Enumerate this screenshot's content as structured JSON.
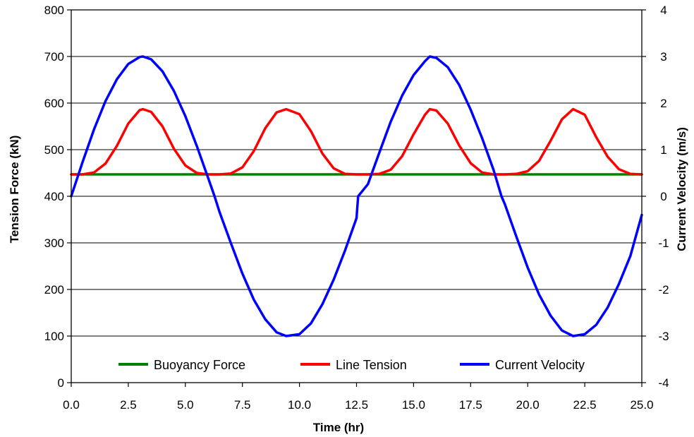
{
  "chart_data": {
    "type": "line",
    "xlabel": "Time (hr)",
    "ylabel": "Tension Force (kN)",
    "y2label": "Current Velocity (m/s)",
    "xlim": [
      0,
      25
    ],
    "ylim": [
      0,
      800
    ],
    "y2lim": [
      -4,
      4
    ],
    "x_ticks": [
      "0.0",
      "2.5",
      "5.0",
      "7.5",
      "10.0",
      "12.5",
      "15.0",
      "17.5",
      "20.0",
      "22.5",
      "25.0"
    ],
    "y_ticks": [
      "0",
      "100",
      "200",
      "300",
      "400",
      "500",
      "600",
      "700",
      "800"
    ],
    "y2_ticks": [
      "-4",
      "-3",
      "-2",
      "-1",
      "0",
      "1",
      "2",
      "3",
      "4"
    ],
    "grid": "horizontal",
    "legend_position": "bottom",
    "series": [
      {
        "name": "Buoyancy Force",
        "axis": "left",
        "color": "#008000",
        "x": [
          0,
          25
        ],
        "y": [
          447,
          447
        ]
      },
      {
        "name": "Line Tension",
        "axis": "left",
        "color": "#ff0000",
        "x": [
          0,
          0.5,
          1.0,
          1.5,
          2.0,
          2.5,
          3.0,
          3.14,
          3.5,
          4.0,
          4.5,
          5.0,
          5.5,
          6.0,
          6.5,
          7.0,
          7.5,
          8.0,
          8.5,
          9.0,
          9.42,
          10.0,
          10.5,
          11.0,
          11.5,
          12.0,
          12.5,
          13.0,
          13.5,
          14.0,
          14.5,
          15.0,
          15.5,
          15.71,
          16.0,
          16.5,
          17.0,
          17.5,
          18.0,
          18.5,
          19.0,
          19.5,
          20.0,
          20.5,
          21.0,
          21.5,
          21.99,
          22.5,
          23.0,
          23.5,
          24.0,
          24.5,
          25.0
        ],
        "y": [
          447,
          447,
          451,
          470,
          508,
          556,
          585,
          587,
          581,
          550,
          502,
          466,
          450,
          447,
          447,
          449,
          462,
          497,
          546,
          580,
          587,
          576,
          540,
          492,
          460,
          448,
          447,
          447,
          448,
          457,
          486,
          533,
          575,
          587,
          584,
          556,
          509,
          471,
          451,
          447,
          447,
          448,
          454,
          476,
          519,
          565,
          587,
          575,
          527,
          485,
          458,
          448,
          447
        ]
      },
      {
        "name": "Current Velocity",
        "axis": "right",
        "color": "#0000ff",
        "x": [
          0,
          0.5,
          1.0,
          1.5,
          2.0,
          2.5,
          3.0,
          3.14,
          3.5,
          4.0,
          4.5,
          5.0,
          5.5,
          6.0,
          6.28,
          6.5,
          7.0,
          7.5,
          8.0,
          8.5,
          9.0,
          9.42,
          10.0,
          10.5,
          11.0,
          11.5,
          12.0,
          12.5,
          12.57,
          13.0,
          13.5,
          14.0,
          14.5,
          15.0,
          15.5,
          15.71,
          16.0,
          16.5,
          17.0,
          17.5,
          18.0,
          18.5,
          18.85,
          19.0,
          19.5,
          20.0,
          20.5,
          21.0,
          21.5,
          21.99,
          22.5,
          23.0,
          23.5,
          24.0,
          24.5,
          25.0
        ],
        "y": [
          0.0,
          0.74,
          1.44,
          2.04,
          2.51,
          2.84,
          2.99,
          3.0,
          2.94,
          2.68,
          2.26,
          1.72,
          1.08,
          0.39,
          0.0,
          -0.34,
          -1.01,
          -1.66,
          -2.22,
          -2.64,
          -2.92,
          -3.0,
          -2.96,
          -2.73,
          -2.32,
          -1.79,
          -1.16,
          -0.47,
          0.0,
          0.26,
          0.94,
          1.6,
          2.16,
          2.6,
          2.9,
          3.0,
          2.97,
          2.77,
          2.39,
          1.86,
          1.25,
          0.57,
          0.0,
          -0.17,
          -0.86,
          -1.53,
          -2.11,
          -2.56,
          -2.88,
          -3.0,
          -2.96,
          -2.76,
          -2.39,
          -1.88,
          -1.28,
          -0.4
        ]
      }
    ]
  }
}
